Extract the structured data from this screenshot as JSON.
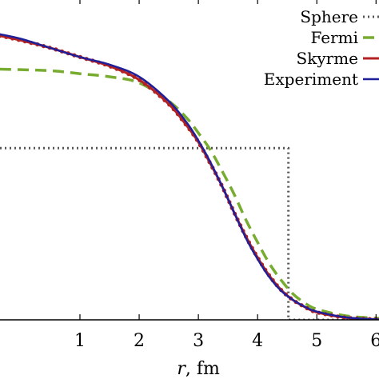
{
  "chart_data": {
    "type": "line",
    "xlabel_var": "r",
    "xlabel_unit": ", fm",
    "xlim": [
      -0.35,
      6.05
    ],
    "ylim": [
      0,
      1.0
    ],
    "xticks": [
      1,
      2,
      3,
      4,
      5,
      6
    ],
    "grid": false,
    "legend_position": "top-right",
    "series": [
      {
        "name": "Sphere",
        "color": "#555555",
        "style": "dotted",
        "x": [
          -0.35,
          4.42,
          4.42,
          4.52,
          4.52,
          6.05
        ],
        "y": [
          0.565,
          0.565,
          0.565,
          0.565,
          0.0,
          0.0
        ]
      },
      {
        "name": "Fermi",
        "color": "#77ac30",
        "style": "dashed",
        "x": [
          -0.35,
          0.5,
          1.0,
          1.5,
          2.0,
          2.5,
          2.8,
          3.0,
          3.2,
          3.4,
          3.6,
          3.8,
          4.0,
          4.2,
          4.4,
          4.6,
          4.8,
          5.0,
          5.5,
          6.05
        ],
        "y": [
          0.825,
          0.82,
          0.81,
          0.8,
          0.78,
          0.72,
          0.665,
          0.615,
          0.56,
          0.49,
          0.415,
          0.33,
          0.255,
          0.185,
          0.13,
          0.085,
          0.055,
          0.035,
          0.013,
          0.005
        ]
      },
      {
        "name": "Skyrme",
        "color": "#b22222",
        "style": "solid-markers",
        "x": [
          -0.35,
          0.0,
          0.5,
          1.0,
          1.5,
          2.0,
          2.5,
          2.8,
          3.0,
          3.2,
          3.4,
          3.6,
          3.8,
          4.0,
          4.2,
          4.4,
          4.6,
          4.8,
          5.0,
          5.5,
          6.05
        ],
        "y": [
          0.935,
          0.92,
          0.895,
          0.865,
          0.835,
          0.79,
          0.71,
          0.64,
          0.585,
          0.515,
          0.44,
          0.355,
          0.275,
          0.205,
          0.145,
          0.098,
          0.065,
          0.042,
          0.025,
          0.007,
          0.001
        ]
      },
      {
        "name": "Experiment",
        "color": "#1f1f9a",
        "style": "solid",
        "x": [
          -0.35,
          0.0,
          0.5,
          1.0,
          1.5,
          2.0,
          2.5,
          2.8,
          3.0,
          3.2,
          3.4,
          3.6,
          3.8,
          4.0,
          4.2,
          4.4,
          4.6,
          4.8,
          5.0,
          5.5,
          6.05
        ],
        "y": [
          0.94,
          0.925,
          0.895,
          0.865,
          0.84,
          0.8,
          0.72,
          0.65,
          0.59,
          0.52,
          0.44,
          0.355,
          0.27,
          0.2,
          0.14,
          0.095,
          0.065,
          0.043,
          0.027,
          0.008,
          0.001
        ]
      }
    ]
  }
}
